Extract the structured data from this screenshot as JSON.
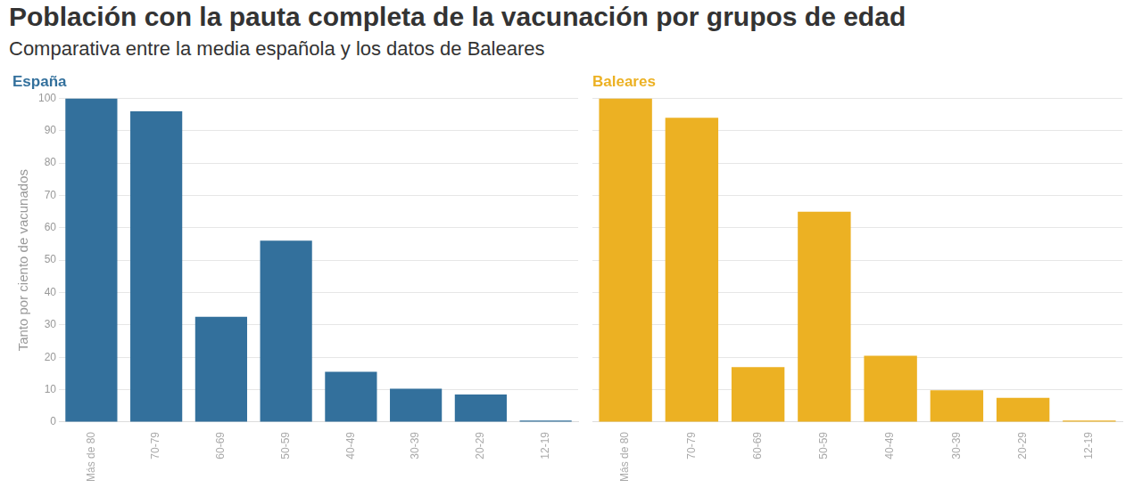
{
  "title": "Población con la pauta completa de la vacunación por grupos de edad",
  "subtitle": "Comparativa entre la media española y los datos de Baleares",
  "chart_data": [
    {
      "type": "bar",
      "title": "España",
      "ylabel": "Tanto por ciento de vacunados",
      "categories": [
        "Más de 80",
        "70-79",
        "60-69",
        "50-59",
        "40-49",
        "30-39",
        "20-29",
        "12-19"
      ],
      "values": [
        100,
        96,
        32.5,
        56,
        15.5,
        10.3,
        8.5,
        0.5
      ],
      "color": "#33709c",
      "ylim": [
        0,
        100
      ],
      "yticks": [
        0,
        10,
        20,
        30,
        40,
        50,
        60,
        70,
        80,
        90,
        100
      ],
      "grid": true
    },
    {
      "type": "bar",
      "title": "Baleares",
      "categories": [
        "Más de 80",
        "70-79",
        "60-69",
        "50-59",
        "40-49",
        "30-39",
        "20-29",
        "12-19"
      ],
      "values": [
        100,
        94,
        17,
        65,
        20.5,
        9.8,
        7.5,
        0.5
      ],
      "color": "#ecb123",
      "ylim": [
        0,
        100
      ],
      "yticks": [
        0,
        10,
        20,
        30,
        40,
        50,
        60,
        70,
        80,
        90,
        100
      ],
      "grid": true,
      "tick_labels": "x"
    }
  ]
}
